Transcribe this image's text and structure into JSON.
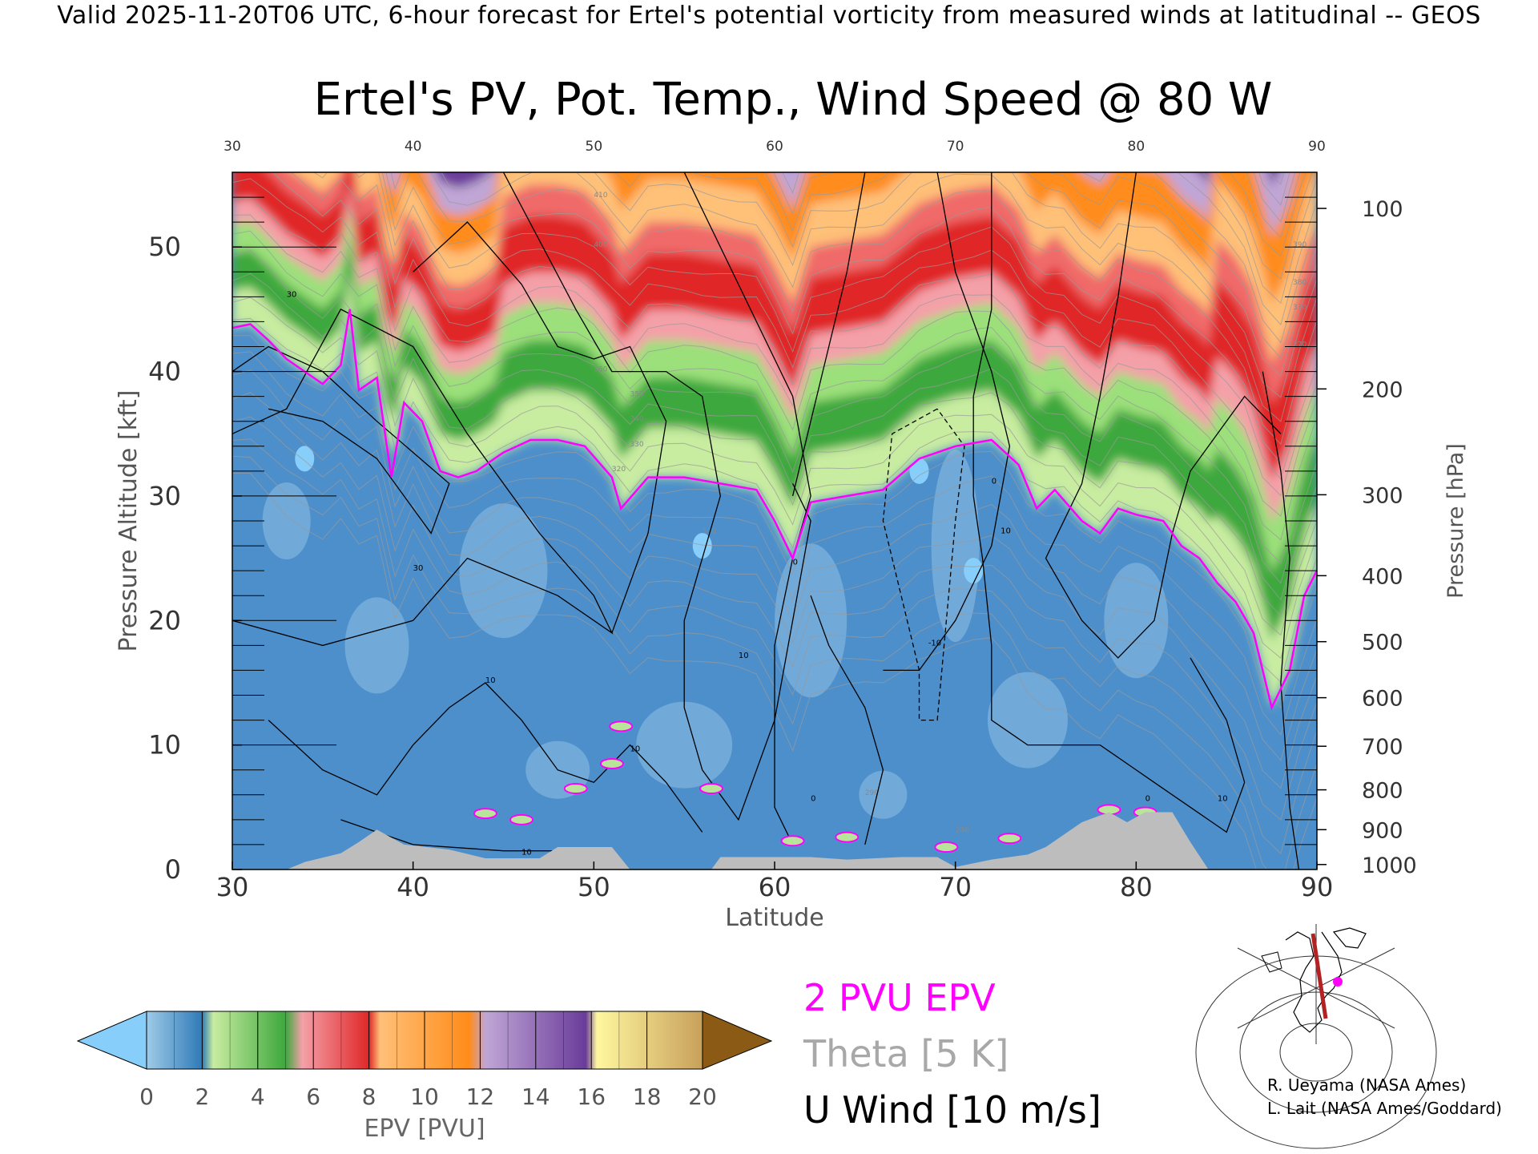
{
  "header": "Valid 2025-11-20T06 UTC, 6-hour forecast for Ertel's potential vorticity from measured winds at latitudinal -- GEOS",
  "chart_data": {
    "type": "heatmap",
    "title": "Ertel's PV, Pot. Temp., Wind Speed @ 80 W",
    "xlabel": "Latitude",
    "ylabel": "Pressure Altitude [kft]",
    "y2label": "Pressure [hPa]",
    "xlim": [
      30,
      90
    ],
    "ylim": [
      0,
      56
    ],
    "xticks": [
      30,
      40,
      50,
      60,
      70,
      80,
      90
    ],
    "top_xticks": [
      30,
      40,
      50,
      60,
      70,
      80,
      90
    ],
    "yticks": [
      0,
      10,
      20,
      30,
      40,
      50
    ],
    "pressure_ticks": [
      {
        "label": "100",
        "kft": 53.1
      },
      {
        "label": "200",
        "kft": 38.6
      },
      {
        "label": "300",
        "kft": 30.1
      },
      {
        "label": "400",
        "kft": 23.6
      },
      {
        "label": "500",
        "kft": 18.3
      },
      {
        "label": "600",
        "kft": 13.8
      },
      {
        "label": "700",
        "kft": 9.9
      },
      {
        "label": "800",
        "kft": 6.4
      },
      {
        "label": "900",
        "kft": 3.2
      },
      {
        "label": "1000",
        "kft": 0.4
      }
    ],
    "pv2_tropopause_kft": [
      [
        30,
        43.5
      ],
      [
        31,
        43.8
      ],
      [
        32,
        42.5
      ],
      [
        33,
        41
      ],
      [
        34,
        40
      ],
      [
        35,
        39
      ],
      [
        36,
        40.5
      ],
      [
        36.5,
        45
      ],
      [
        37,
        38.5
      ],
      [
        38,
        39.5
      ],
      [
        38.8,
        31.5
      ],
      [
        39.5,
        37.5
      ],
      [
        40.5,
        36
      ],
      [
        41.5,
        32
      ],
      [
        42.5,
        31.5
      ],
      [
        43.5,
        32
      ],
      [
        45,
        33.5
      ],
      [
        46.5,
        34.5
      ],
      [
        48,
        34.5
      ],
      [
        49.5,
        34
      ],
      [
        51,
        31.5
      ],
      [
        51.5,
        29
      ],
      [
        53,
        31.5
      ],
      [
        55,
        31.5
      ],
      [
        57,
        31
      ],
      [
        59,
        30.5
      ],
      [
        60,
        28
      ],
      [
        61,
        25
      ],
      [
        62,
        29.5
      ],
      [
        64,
        30
      ],
      [
        66,
        30.5
      ],
      [
        68,
        33
      ],
      [
        70,
        34
      ],
      [
        72,
        34.5
      ],
      [
        73.5,
        32.5
      ],
      [
        74.5,
        29
      ],
      [
        75.5,
        30.5
      ],
      [
        77,
        28
      ],
      [
        78,
        27
      ],
      [
        79,
        29
      ],
      [
        80,
        28.5
      ],
      [
        81.5,
        28
      ],
      [
        82.5,
        26
      ],
      [
        83.5,
        25
      ],
      [
        84.5,
        23
      ],
      [
        85.5,
        21.5
      ],
      [
        86.5,
        19
      ],
      [
        87.5,
        13
      ],
      [
        88.5,
        16
      ],
      [
        89.3,
        22
      ],
      [
        90,
        24
      ]
    ],
    "terrain_kft": [
      [
        30,
        0
      ],
      [
        33,
        0
      ],
      [
        34,
        0.6
      ],
      [
        36,
        1.3
      ],
      [
        37,
        2.2
      ],
      [
        38,
        3.2
      ],
      [
        39.5,
        2.0
      ],
      [
        42,
        1.6
      ],
      [
        44,
        0.9
      ],
      [
        46,
        0.9
      ],
      [
        47,
        0.9
      ],
      [
        48,
        1.8
      ],
      [
        51,
        1.8
      ],
      [
        52,
        0
      ],
      [
        56.5,
        0
      ],
      [
        57,
        1.0
      ],
      [
        62,
        1.0
      ],
      [
        64,
        0.8
      ],
      [
        67,
        1.0
      ],
      [
        69,
        1.0
      ],
      [
        70,
        0.2
      ],
      [
        72,
        0.8
      ],
      [
        74,
        1.2
      ],
      [
        75,
        1.8
      ],
      [
        77,
        3.8
      ],
      [
        78.5,
        4.6
      ],
      [
        79.5,
        3.8
      ],
      [
        80.5,
        4.6
      ],
      [
        82,
        4.6
      ],
      [
        83,
        2.2
      ],
      [
        84,
        0
      ],
      [
        90,
        0
      ]
    ],
    "theta_labels": [
      "410",
      "400",
      "390",
      "380",
      "370",
      "360",
      "350",
      "340",
      "330",
      "320",
      "310",
      "290",
      "280",
      "270"
    ],
    "u_wind_labels": [
      "30",
      "30",
      "10",
      "10",
      "10",
      "10",
      "0",
      "0",
      "0",
      "0",
      "-10",
      "10",
      "10"
    ],
    "colorbar": {
      "label": "EPV [PVU]",
      "ticks": [
        "0",
        "2",
        "4",
        "6",
        "8",
        "10",
        "12",
        "14",
        "16",
        "18",
        "20"
      ],
      "under_color": "#87cefa",
      "over_color": "#8b5a14",
      "colors": [
        "#9fcbe8",
        "#2f7ab8",
        "#c8eca0",
        "#3da83d",
        "#f4a0a8",
        "#e02828",
        "#ffc078",
        "#ff8c1a",
        "#c0a6d6",
        "#6a3c9a",
        "#fff7a0",
        "#8b5a14"
      ]
    }
  },
  "legend": {
    "pvu": "2 PVU EPV",
    "theta": "Theta [5 K]",
    "uwind": "U Wind [10 m/s]"
  },
  "credits": [
    "R. Ueyama (NASA Ames)",
    "L. Lait (NASA Ames/Goddard)"
  ]
}
